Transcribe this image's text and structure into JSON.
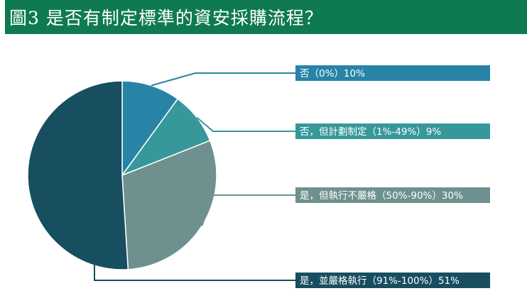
{
  "page": {
    "title": "圖3 是否有制定標準的資安採購流程？"
  },
  "chart_data": {
    "type": "pie",
    "title": "圖3 是否有制定標準的資安採購流程？",
    "slices": [
      {
        "label": "否（0%）10%",
        "value": 10,
        "color": "#2784a6"
      },
      {
        "label": "否，但計劃制定（1%-49%）9%",
        "value": 9,
        "color": "#36989a"
      },
      {
        "label": "是，但執行不嚴格（50%-90%）30%",
        "value": 30,
        "color": "#6e918f"
      },
      {
        "label": "是，並嚴格執行（91%-100%）51%",
        "value": 51,
        "color": "#174e60"
      }
    ],
    "legend_position": "right"
  }
}
